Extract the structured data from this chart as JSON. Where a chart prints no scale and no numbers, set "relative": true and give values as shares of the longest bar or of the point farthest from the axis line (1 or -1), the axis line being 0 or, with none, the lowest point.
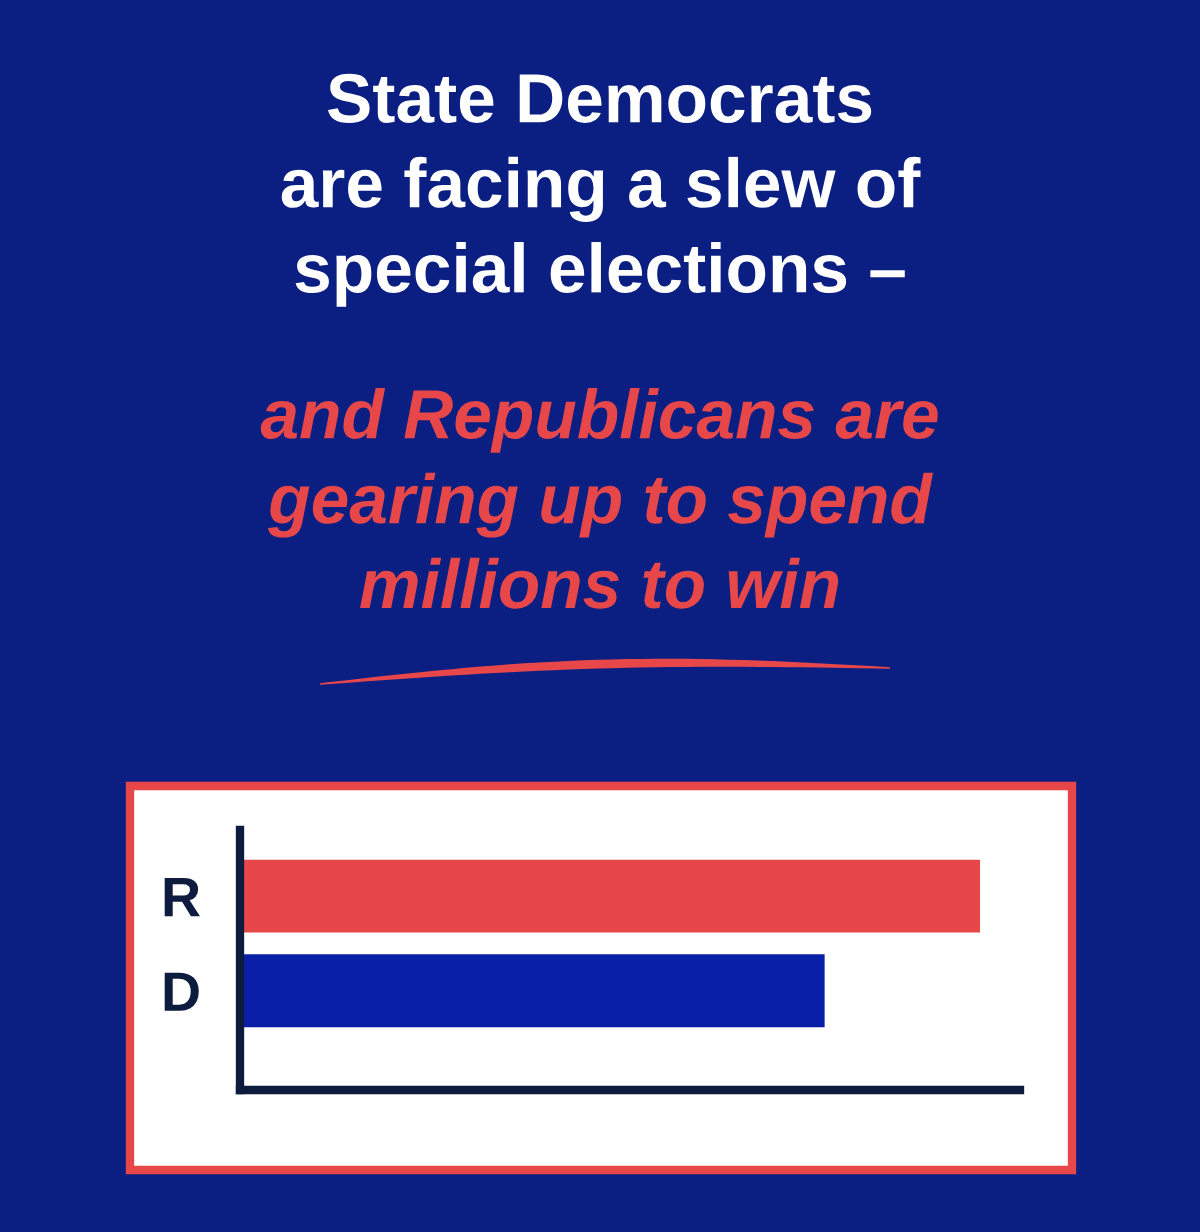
{
  "chart_data": {
    "type": "bar",
    "orientation": "horizontal",
    "relative": true,
    "title": "State Democrats\nare facing a slew of\nspecial elections –",
    "subtitle": "and Republicans are\ngearing up to spend\nmillions to win",
    "categories": [
      "R",
      "D"
    ],
    "values": [
      1,
      0.79
    ],
    "colors": [
      "#e8474a",
      "#0a1fa8"
    ],
    "grid": false,
    "legend": false
  }
}
